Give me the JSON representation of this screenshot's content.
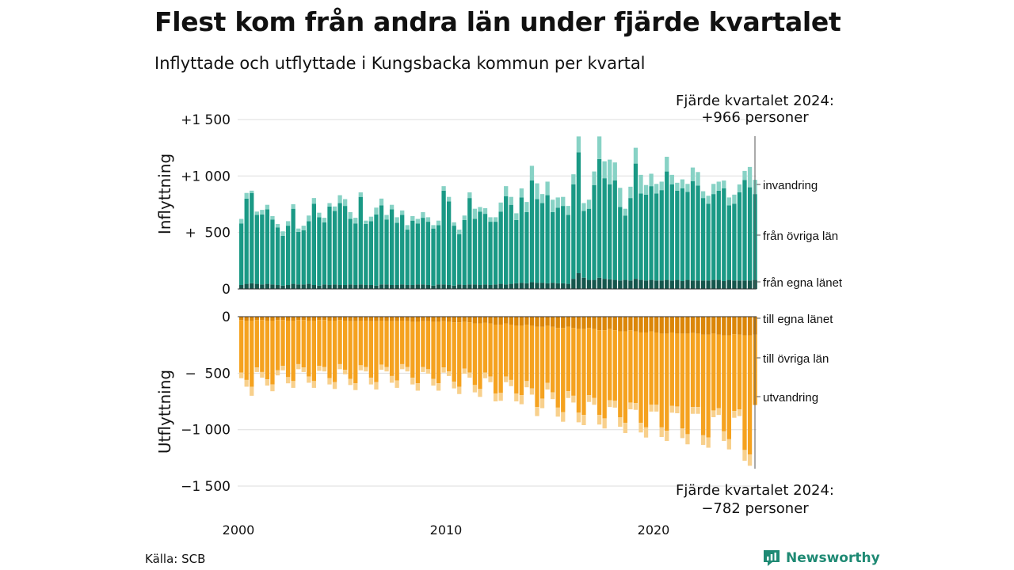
{
  "title": "Flest kom från andra län under fjärde kvartalet",
  "subtitle": "Inflyttade och utflyttade i Kungsbacka kommun per kvartal",
  "source": "Källa: SCB",
  "brand": "Newsworthy",
  "annotations": {
    "top": [
      "Fjärde kvartalet 2024:",
      "+966 personer"
    ],
    "bottom": [
      "Fjärde kvartalet 2024:",
      "−782 personer"
    ]
  },
  "colors": {
    "in_egna": "#15564d",
    "in_ovriga": "#1a9985",
    "in_invandring": "#87d2c5",
    "ut_egna": "#db8608",
    "ut_ovriga": "#f5a21f",
    "ut_utvandring": "#f8d08c",
    "grid": "#dddddd",
    "brand": "#1f8a74"
  },
  "chart_data": [
    {
      "type": "bar",
      "stacked": true,
      "panel": "inflyttning",
      "ylabel": "Inflyttning",
      "ylim": [
        0,
        1500
      ],
      "yticks": [
        0,
        500,
        1000,
        1500
      ],
      "ytick_labels": [
        "0",
        "+  500",
        "+1 000",
        "+1 500"
      ],
      "xticks": [
        "2000",
        "2010",
        "2020"
      ],
      "x": [
        "2000 K1",
        "2000 K2",
        "2000 K3",
        "2000 K4",
        "2001 K1",
        "2001 K2",
        "2001 K3",
        "2001 K4",
        "2002 K1",
        "2002 K2",
        "2002 K3",
        "2002 K4",
        "2003 K1",
        "2003 K2",
        "2003 K3",
        "2003 K4",
        "2004 K1",
        "2004 K2",
        "2004 K3",
        "2004 K4",
        "2005 K1",
        "2005 K2",
        "2005 K3",
        "2005 K4",
        "2006 K1",
        "2006 K2",
        "2006 K3",
        "2006 K4",
        "2007 K1",
        "2007 K2",
        "2007 K3",
        "2007 K4",
        "2008 K1",
        "2008 K2",
        "2008 K3",
        "2008 K4",
        "2009 K1",
        "2009 K2",
        "2009 K3",
        "2009 K4",
        "2010 K1",
        "2010 K2",
        "2010 K3",
        "2010 K4",
        "2011 K1",
        "2011 K2",
        "2011 K3",
        "2011 K4",
        "2012 K1",
        "2012 K2",
        "2012 K3",
        "2012 K4",
        "2013 K1",
        "2013 K2",
        "2013 K3",
        "2013 K4",
        "2014 K1",
        "2014 K2",
        "2014 K3",
        "2014 K4",
        "2015 K1",
        "2015 K2",
        "2015 K3",
        "2015 K4",
        "2016 K1",
        "2016 K2",
        "2016 K3",
        "2016 K4",
        "2017 K1",
        "2017 K2",
        "2017 K3",
        "2017 K4",
        "2018 K1",
        "2018 K2",
        "2018 K3",
        "2018 K4",
        "2019 K1",
        "2019 K2",
        "2019 K3",
        "2019 K4",
        "2020 K1",
        "2020 K2",
        "2020 K3",
        "2020 K4",
        "2021 K1",
        "2021 K2",
        "2021 K3",
        "2021 K4",
        "2022 K1",
        "2022 K2",
        "2022 K3",
        "2022 K4",
        "2023 K1",
        "2023 K2",
        "2023 K3",
        "2023 K4",
        "2024 K1",
        "2024 K2",
        "2024 K3",
        "2024 K4"
      ],
      "series": [
        {
          "name": "från egna länet",
          "values": [
            35,
            45,
            50,
            45,
            40,
            45,
            40,
            35,
            30,
            35,
            45,
            40,
            40,
            45,
            35,
            30,
            40,
            35,
            40,
            35,
            35,
            40,
            35,
            40,
            35,
            35,
            30,
            40,
            40,
            35,
            35,
            40,
            35,
            35,
            40,
            40,
            35,
            30,
            40,
            40,
            35,
            30,
            40,
            35,
            40,
            40,
            35,
            40,
            35,
            40,
            45,
            40,
            45,
            50,
            55,
            50,
            60,
            55,
            55,
            50,
            55,
            50,
            50,
            45,
            90,
            140,
            100,
            80,
            80,
            100,
            90,
            85,
            80,
            75,
            80,
            75,
            90,
            80,
            75,
            80,
            75,
            75,
            80,
            75,
            80,
            70,
            80,
            75,
            75,
            75,
            75,
            80,
            80,
            70,
            80,
            75,
            75,
            75,
            75,
            80
          ]
        },
        {
          "name": "från övriga län",
          "values": [
            545,
            755,
            800,
            610,
            620,
            660,
            575,
            510,
            440,
            525,
            665,
            465,
            480,
            555,
            720,
            605,
            550,
            695,
            650,
            725,
            700,
            580,
            545,
            775,
            540,
            565,
            630,
            700,
            575,
            670,
            550,
            615,
            490,
            570,
            540,
            590,
            560,
            505,
            525,
            830,
            740,
            530,
            445,
            575,
            765,
            580,
            650,
            625,
            560,
            555,
            640,
            780,
            700,
            560,
            755,
            630,
            900,
            740,
            705,
            780,
            625,
            670,
            685,
            610,
            835,
            1070,
            590,
            630,
            840,
            1050,
            890,
            840,
            880,
            650,
            570,
            730,
            1020,
            765,
            760,
            830,
            770,
            800,
            960,
            850,
            790,
            820,
            780,
            880,
            840,
            730,
            680,
            760,
            790,
            820,
            660,
            680,
            780,
            890,
            825,
            760
          ]
        },
        {
          "name": "invandring",
          "values": [
            40,
            50,
            20,
            30,
            40,
            40,
            30,
            30,
            40,
            40,
            40,
            30,
            40,
            50,
            50,
            40,
            40,
            30,
            40,
            70,
            60,
            60,
            50,
            40,
            30,
            40,
            60,
            60,
            40,
            40,
            50,
            40,
            40,
            40,
            40,
            50,
            40,
            30,
            40,
            40,
            40,
            30,
            40,
            40,
            50,
            90,
            40,
            50,
            40,
            40,
            80,
            90,
            70,
            60,
            80,
            90,
            130,
            140,
            80,
            120,
            110,
            90,
            80,
            80,
            90,
            140,
            70,
            80,
            120,
            200,
            150,
            220,
            160,
            170,
            60,
            100,
            140,
            165,
            85,
            110,
            85,
            75,
            130,
            85,
            70,
            80,
            70,
            120,
            120,
            60,
            70,
            90,
            80,
            70,
            70,
            80,
            70,
            80,
            180,
            126
          ]
        }
      ]
    },
    {
      "type": "bar",
      "stacked": true,
      "panel": "utflyttning",
      "ylabel": "Utflyttning",
      "ylim": [
        -1500,
        0
      ],
      "yticks": [
        0,
        -500,
        -1000,
        -1500
      ],
      "ytick_labels": [
        "0",
        "−  500",
        "−1 000",
        "−1 500"
      ],
      "xticks": [
        "2000",
        "2010",
        "2020"
      ],
      "series": [
        {
          "name": "till egna länet",
          "values": [
            -30,
            -35,
            -35,
            -30,
            -30,
            -35,
            -35,
            -30,
            -30,
            -35,
            -35,
            -30,
            -30,
            -35,
            -35,
            -30,
            -30,
            -35,
            -35,
            -30,
            -35,
            -40,
            -40,
            -35,
            -35,
            -40,
            -40,
            -35,
            -40,
            -40,
            -40,
            -35,
            -40,
            -45,
            -45,
            -40,
            -40,
            -45,
            -45,
            -40,
            -45,
            -50,
            -50,
            -45,
            -50,
            -60,
            -60,
            -55,
            -60,
            -70,
            -70,
            -60,
            -70,
            -80,
            -80,
            -70,
            -80,
            -90,
            -90,
            -80,
            -90,
            -100,
            -100,
            -90,
            -100,
            -110,
            -110,
            -100,
            -110,
            -120,
            -120,
            -110,
            -120,
            -130,
            -130,
            -120,
            -130,
            -140,
            -140,
            -130,
            -140,
            -150,
            -150,
            -140,
            -150,
            -150,
            -150,
            -145,
            -150,
            -160,
            -160,
            -150,
            -160,
            -165,
            -165,
            -155,
            -160,
            -165,
            -165,
            -160
          ]
        },
        {
          "name": "till övriga län",
          "values": [
            -465,
            -525,
            -585,
            -420,
            -460,
            -520,
            -565,
            -445,
            -405,
            -500,
            -535,
            -390,
            -420,
            -495,
            -535,
            -405,
            -415,
            -510,
            -545,
            -390,
            -435,
            -510,
            -550,
            -395,
            -410,
            -500,
            -540,
            -390,
            -405,
            -485,
            -525,
            -385,
            -405,
            -495,
            -545,
            -405,
            -425,
            -505,
            -545,
            -410,
            -440,
            -525,
            -570,
            -415,
            -445,
            -545,
            -580,
            -440,
            -470,
            -610,
            -605,
            -470,
            -490,
            -600,
            -615,
            -500,
            -555,
            -710,
            -635,
            -505,
            -580,
            -705,
            -745,
            -570,
            -600,
            -740,
            -760,
            -595,
            -610,
            -750,
            -780,
            -630,
            -625,
            -760,
            -810,
            -640,
            -635,
            -800,
            -840,
            -650,
            -640,
            -830,
            -860,
            -650,
            -645,
            -840,
            -890,
            -655,
            -650,
            -890,
            -910,
            -680,
            -650,
            -850,
            -920,
            -680,
            -660,
            -1015,
            -1055,
            -622
          ]
        },
        {
          "name": "utvandring",
          "values": [
            -50,
            -60,
            -80,
            -40,
            -50,
            -55,
            -60,
            -45,
            -40,
            -55,
            -60,
            -45,
            -40,
            -55,
            -60,
            -45,
            -40,
            -55,
            -60,
            -45,
            -40,
            -55,
            -60,
            -45,
            -40,
            -60,
            -65,
            -45,
            -40,
            -60,
            -65,
            -45,
            -40,
            -60,
            -65,
            -45,
            -40,
            -60,
            -65,
            -45,
            -40,
            -60,
            -65,
            -45,
            -45,
            -65,
            -70,
            -50,
            -50,
            -70,
            -70,
            -50,
            -55,
            -70,
            -80,
            -55,
            -55,
            -80,
            -85,
            -60,
            -60,
            -80,
            -85,
            -60,
            -60,
            -85,
            -90,
            -60,
            -60,
            -85,
            -90,
            -60,
            -60,
            -85,
            -90,
            -60,
            -60,
            -85,
            -90,
            -60,
            -60,
            -85,
            -90,
            -60,
            -60,
            -85,
            -90,
            -60,
            -60,
            -85,
            -90,
            -60,
            -60,
            -85,
            -90,
            -60,
            -60,
            -95,
            -100,
            0
          ]
        }
      ]
    }
  ]
}
